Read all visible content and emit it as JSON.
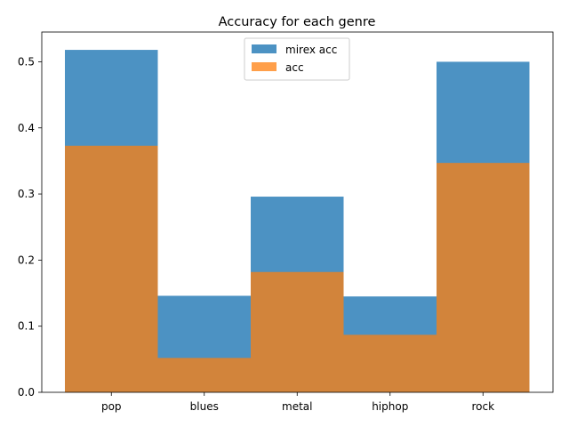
{
  "chart_data": {
    "type": "bar",
    "title": "Accuracy for each genre",
    "xlabel": "",
    "ylabel": "",
    "categories": [
      "pop",
      "blues",
      "metal",
      "hiphop",
      "rock"
    ],
    "series": [
      {
        "name": "mirex acc",
        "color": "#1f77b4",
        "opacity": 0.8,
        "values": [
          0.518,
          0.146,
          0.296,
          0.145,
          0.5
        ]
      },
      {
        "name": "acc",
        "color": "#ff7f0e",
        "opacity": 0.75,
        "values": [
          0.373,
          0.052,
          0.182,
          0.087,
          0.347
        ]
      }
    ],
    "ylim": [
      0,
      0.545
    ],
    "yticks": [
      "0.0",
      "0.1",
      "0.2",
      "0.3",
      "0.4",
      "0.5"
    ],
    "grid": false,
    "legend_position": "top-center"
  }
}
